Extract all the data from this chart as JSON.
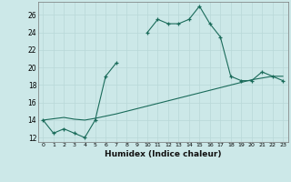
{
  "x": [
    0,
    1,
    2,
    3,
    4,
    5,
    6,
    7,
    8,
    9,
    10,
    11,
    12,
    13,
    14,
    15,
    16,
    17,
    18,
    19,
    20,
    21,
    22,
    23
  ],
  "y_curve": [
    14,
    12.5,
    13,
    12.5,
    12,
    14,
    19,
    20.5,
    null,
    null,
    24,
    25.5,
    25,
    25,
    25.5,
    27,
    25,
    23.5,
    19,
    18.5,
    18.5,
    19.5,
    19,
    18.5
  ],
  "y_line": [
    14,
    14.15,
    14.3,
    14.1,
    14.0,
    14.2,
    14.45,
    14.7,
    15.0,
    15.3,
    15.6,
    15.9,
    16.2,
    16.5,
    16.8,
    17.1,
    17.4,
    17.7,
    18.0,
    18.3,
    18.6,
    18.8,
    19.0,
    19.0
  ],
  "xlabel": "Humidex (Indice chaleur)",
  "xlim": [
    -0.5,
    23.5
  ],
  "ylim": [
    11.5,
    27.5
  ],
  "yticks": [
    12,
    14,
    16,
    18,
    20,
    22,
    24,
    26
  ],
  "xticks": [
    0,
    1,
    2,
    3,
    4,
    5,
    6,
    7,
    8,
    9,
    10,
    11,
    12,
    13,
    14,
    15,
    16,
    17,
    18,
    19,
    20,
    21,
    22,
    23
  ],
  "line_color": "#1a6b5a",
  "bg_color": "#cce8e8",
  "grid_color": "#b8d8d8",
  "marker": "+",
  "markersize": 3.5,
  "linewidth": 0.8
}
